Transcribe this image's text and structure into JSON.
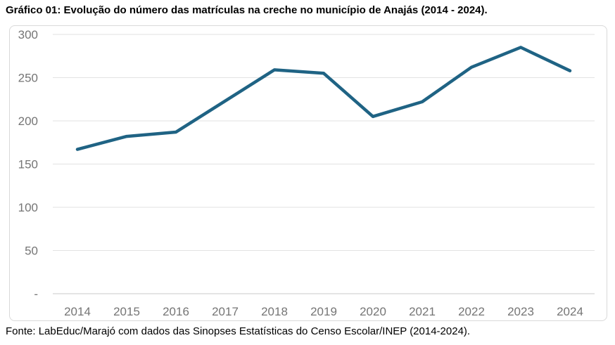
{
  "page": {
    "title": "Gráfico 01: Evolução do número das matrículas na creche no município de Anajás (2014 - 2024).",
    "source": "Fonte: LabEduc/Marajó com dados das Sinopses Estatísticas do Censo Escolar/INEP (2014-2024)."
  },
  "colors": {
    "line": "#1F6384",
    "grid": "#E2E2E2",
    "zero_line": "#C9C9C9",
    "axis_text": "#757575",
    "border": "#D9D9D9",
    "background": "#FFFFFF"
  },
  "chart_data": {
    "type": "line",
    "title": "Gráfico 01: Evolução do número das matrículas na creche no município de Anajás (2014 - 2024).",
    "categories": [
      "2014",
      "2015",
      "2016",
      "2017",
      "2018",
      "2019",
      "2020",
      "2021",
      "2022",
      "2023",
      "2024"
    ],
    "values": [
      167,
      182,
      187,
      223,
      259,
      255,
      205,
      222,
      262,
      285,
      258
    ],
    "xlabel": "",
    "ylabel": "",
    "ylim": [
      0,
      300
    ],
    "yticks": [
      300,
      250,
      200,
      150,
      100,
      50,
      0
    ],
    "ytick_labels": [
      "300",
      "250",
      "200",
      "150",
      "100",
      "50",
      "-"
    ],
    "grid": true,
    "legend": false,
    "line_color": "#1F6384",
    "source": "Fonte: LabEduc/Marajó com dados das Sinopses Estatísticas do Censo Escolar/INEP (2014-2024)."
  }
}
